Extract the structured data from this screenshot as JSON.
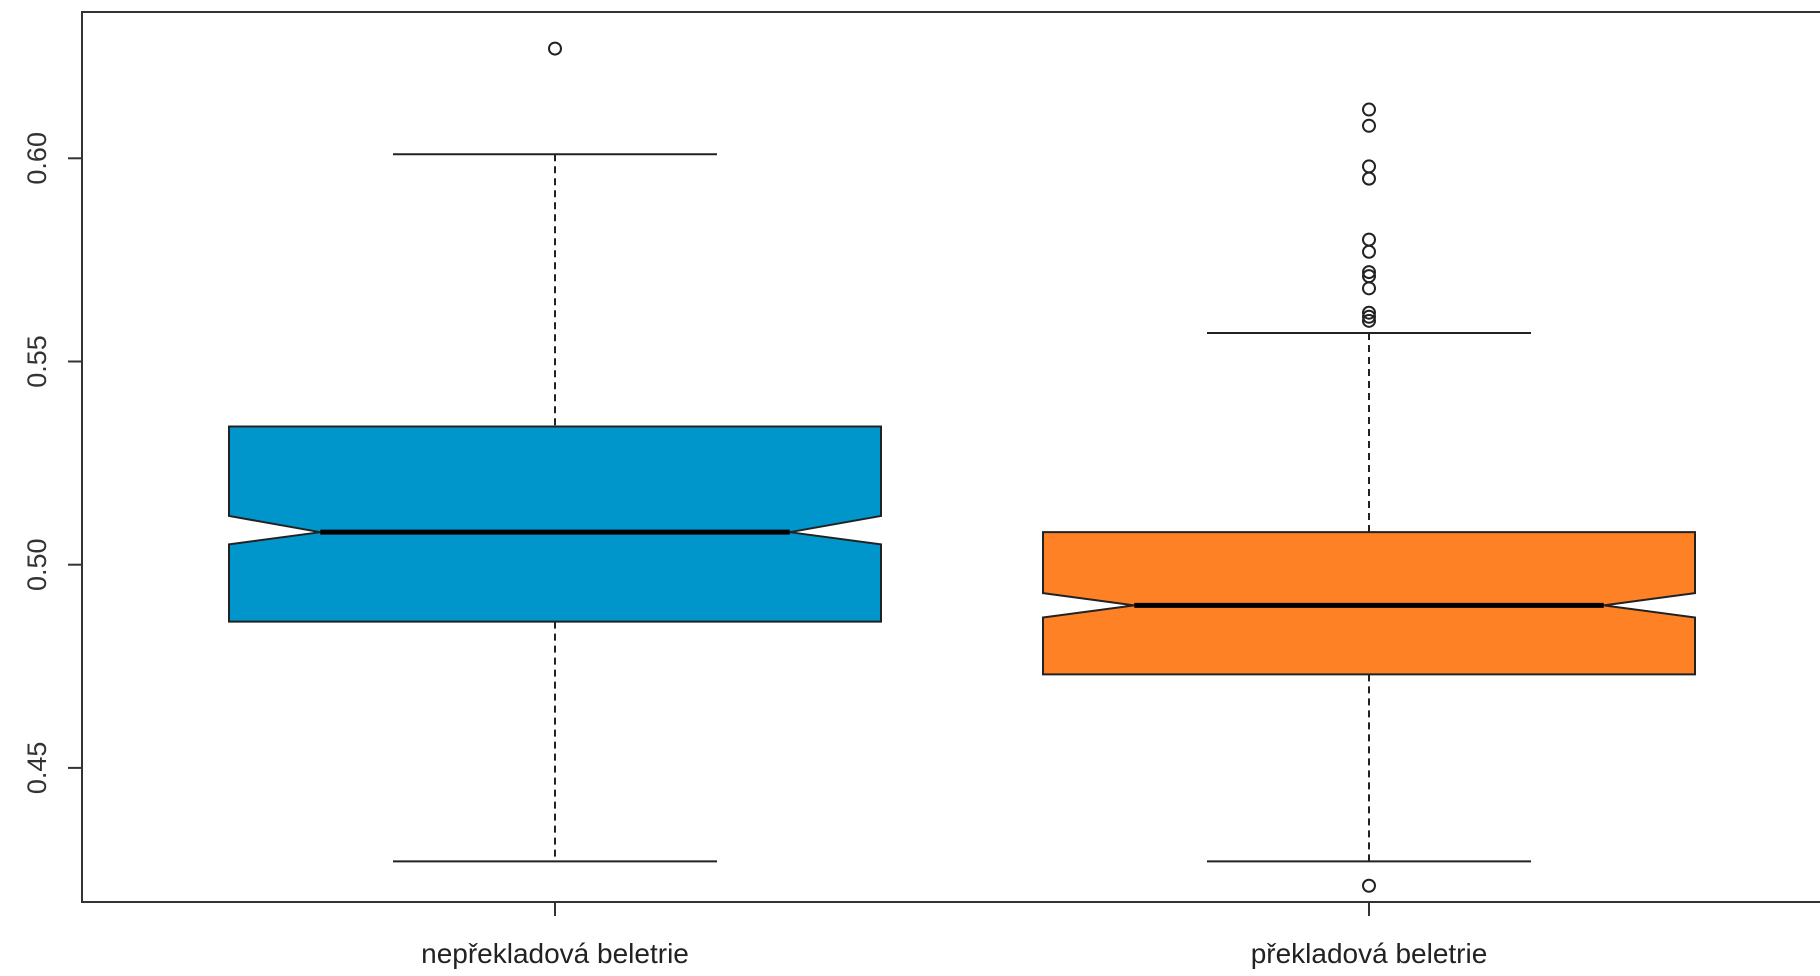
{
  "chart_data": {
    "type": "boxplot",
    "notched": true,
    "title": "",
    "xlabel": "",
    "ylabel": "",
    "ylim": [
      0.417,
      0.636
    ],
    "y_ticks": [
      0.45,
      0.5,
      0.55,
      0.6
    ],
    "y_tick_labels": [
      "0.45",
      "0.50",
      "0.55",
      "0.60"
    ],
    "grid": false,
    "legend": "none",
    "categories": [
      "nepřekladová beletrie",
      "překladová beletrie"
    ],
    "boxes": [
      {
        "category": "nepřekladová beletrie",
        "color": "#0096CC",
        "whisker_low": 0.427,
        "q1": 0.486,
        "notch_low": 0.505,
        "median": 0.508,
        "notch_high": 0.512,
        "q3": 0.534,
        "whisker_high": 0.601,
        "outliers": [
          0.627
        ]
      },
      {
        "category": "překladová beletrie",
        "color": "#FF8126",
        "whisker_low": 0.427,
        "q1": 0.473,
        "notch_low": 0.487,
        "median": 0.49,
        "notch_high": 0.493,
        "q3": 0.508,
        "whisker_high": 0.557,
        "outliers": [
          0.421,
          0.56,
          0.561,
          0.562,
          0.568,
          0.571,
          0.572,
          0.577,
          0.58,
          0.595,
          0.598,
          0.608,
          0.612
        ]
      }
    ]
  }
}
